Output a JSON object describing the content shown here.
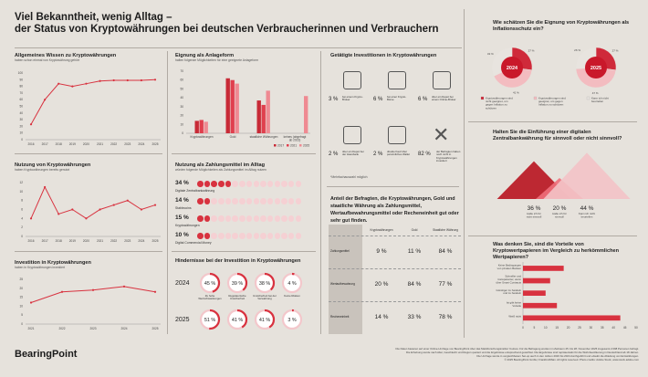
{
  "title_line1": "Viel Bekanntheit, wenig Alltag –",
  "title_line2": "der Status von Kryptowährungen bei deutschen Verbraucherinnen und Verbrauchern",
  "brand": "BearingPoint",
  "footer_line1": "Die Daten basieren auf einer Online-Umfrage von BearingPoint über das Marktforschungsinstitut YouGov. Für die Befragung wurden im Zeitraum 25. bis 28. November 2025 insgesamt 2.098 Personen befragt.",
  "footer_line2": "Die Erhebung wurde nach Alter, Geschlecht und Region quotiert und die Ergebnisse entsprechend gewichtet. Die Ergebnisse sind repräsentativ für die Wohnbevölkerung in Deutschland ab 18 Jahren.",
  "footer_line3": "Die Umfrage wurde in vergleichbarem Set-up auch in den Jahren 2016 bis 2024 durchgeführt und erlaubt die Ableitung von Entwicklungen.",
  "footer_line4": "© 2025 BearingPoint GmbH, Frankfurt/Main. All rights reserved. Photo credits: Adobe Stock, www.stock.adobe.com",
  "charts": {
    "wissen": {
      "title": "Allgemeines Wissen zu Kryptowährungen",
      "subtitle": "haben schon einmal von Kryptowährung gehört"
    },
    "nutzung": {
      "title": "Nutzung von Kryptowährungen",
      "subtitle": "haben Kryptowährungen bereits genutzt"
    },
    "investition": {
      "title": "Investition in Kryptowährungen",
      "subtitle": "haben in Kryptowährungen investiert"
    },
    "eignung": {
      "title": "Eignung als Anlageform",
      "subtitle": "halten folgende Möglichkeiten für eine geeignete Anlageform"
    },
    "zahlung": {
      "title": "Nutzung als Zahlungsmittel im Alltag",
      "subtitle": "würden folgende Möglichkeiten als Zahlungsmittel im Alltag nutzen"
    },
    "hindernisse": {
      "title": "Hindernisse bei der Investition in Kryptowährungen"
    },
    "investitionen": {
      "title": "Getätigte Investitionen in Kryptowährungen",
      "note": "*Mehrfachauswahl möglich"
    },
    "anteil": {
      "title": "Anteil der Befragten, die Kryptowährungen, Gold und staatliche Währung als Zahlungsmittel, Wertaufbewahrungsmittel oder Recheneinheit gut oder sehr gut finden."
    },
    "inflation": {
      "title": "Wie schätzen Sie die Eignung von Kryptowährungen als Inflationsschutz ein?"
    },
    "zentralbank": {
      "title": "Halten Sie die Einführung einer digitalen Zentralbankwährung für sinnvoll oder nicht sinnvoll?"
    },
    "wertpapiere": {
      "title": "Was denken Sie, sind die Vorteile von Kryptowertpapieren im Vergleich zu herkömmlichen Wertpapieren?"
    }
  },
  "chart_data": [
    {
      "id": "wissen",
      "type": "line",
      "x": [
        "2016",
        "2017",
        "2018",
        "2019",
        "2020",
        "2021",
        "2022",
        "2023",
        "2024",
        "2025"
      ],
      "values": [
        23,
        60,
        84,
        80,
        84,
        88,
        89,
        89,
        89,
        90
      ],
      "ylim": [
        0,
        100
      ],
      "yticks": [
        "0",
        "10",
        "20",
        "30",
        "40",
        "50",
        "60",
        "70",
        "80",
        "90",
        "100"
      ],
      "grid": false
    },
    {
      "id": "nutzung",
      "type": "line",
      "x": [
        "2016",
        "2017",
        "2018",
        "2019",
        "2020",
        "2021",
        "2022",
        "2023",
        "2024",
        "2025"
      ],
      "values": [
        4,
        11,
        5,
        6,
        4,
        6,
        7,
        8,
        6,
        7
      ],
      "ylim": [
        0,
        12
      ],
      "yticks": [
        "0",
        "2",
        "4",
        "6",
        "8",
        "10",
        "12"
      ],
      "grid": false
    },
    {
      "id": "investition",
      "type": "line",
      "x": [
        "2021",
        "2022",
        "2023",
        "2024",
        "2025"
      ],
      "values": [
        12,
        18,
        19,
        21,
        18
      ],
      "ylim": [
        0,
        25
      ],
      "yticks": [
        "0",
        "5",
        "10",
        "15",
        "20",
        "25"
      ],
      "grid": false
    },
    {
      "id": "eignung",
      "type": "bar",
      "categories": [
        "Kryptowährungen",
        "Gold",
        "staatliche Währungen",
        "keines (abgefragt ab 2023)"
      ],
      "series": [
        {
          "name": "2017",
          "color": "#c82a36",
          "values": [
            14,
            62,
            37,
            0
          ]
        },
        {
          "name": "2021",
          "color": "#e0404e",
          "values": [
            15,
            60,
            32,
            0
          ]
        },
        {
          "name": "2025",
          "color": "#ef8a92",
          "values": [
            13,
            56,
            48,
            42
          ]
        }
      ],
      "ylim": [
        0,
        70
      ],
      "yticks": [
        "0",
        "10",
        "20",
        "30",
        "40",
        "50",
        "60",
        "70"
      ],
      "legend": "bottom-right"
    },
    {
      "id": "zahlung",
      "type": "table",
      "rows": [
        {
          "pct": "34 %",
          "label": "Digitale Zentralbankwährung",
          "value": 34
        },
        {
          "pct": "14 %",
          "label": "Stablecoins",
          "value": 14
        },
        {
          "pct": "15 %",
          "label": "Kryptowährungen",
          "value": 15
        },
        {
          "pct": "10 %",
          "label": "Digital Commercial Money",
          "value": 10
        }
      ]
    },
    {
      "id": "hindernisse",
      "type": "pie",
      "labels": [
        "Zu hohe Wertschwankungen",
        "Regulatorische Unsicherheit",
        "Unsicherheit bei der Verwahrung",
        "Keine Risiken"
      ],
      "rows": [
        {
          "year": "2024",
          "values": [
            "45 %",
            "39 %",
            "38 %",
            "4 %"
          ]
        },
        {
          "year": "2025",
          "values": [
            "51 %",
            "41 %",
            "41 %",
            "3 %"
          ]
        }
      ]
    },
    {
      "id": "investitionen",
      "type": "table",
      "items": [
        {
          "pct": "3 %",
          "label": "bei einem Krypto-Broker"
        },
        {
          "pct": "6 %",
          "label": "bei einer Krypto-Börse"
        },
        {
          "pct": "6 %",
          "label": "über ein Depot bei einem Online-Broker"
        },
        {
          "pct": "2 %",
          "label": "über ein Depot bei der Hausbank"
        },
        {
          "pct": "2 %",
          "label": "direkte Kauf über persönliches Wallet"
        },
        {
          "pct": "82 %",
          "label": "der Befragten haben noch nicht in Kryptowährungen investiert"
        }
      ]
    },
    {
      "id": "anteil",
      "type": "table",
      "columns": [
        "",
        "Kryptowährungen",
        "Gold",
        "Staatliche Währung"
      ],
      "rows": [
        {
          "label": "Zahlungsmittel",
          "values": [
            "9 %",
            "11 %",
            "84 %"
          ]
        },
        {
          "label": "Wertaufbewahrung",
          "values": [
            "20 %",
            "84 %",
            "77 %"
          ]
        },
        {
          "label": "Recheneinheit",
          "values": [
            "14 %",
            "33 %",
            "78 %"
          ]
        }
      ]
    },
    {
      "id": "inflation",
      "type": "pie",
      "series": [
        {
          "name": "2024",
          "values": [
            27,
            41,
            32
          ]
        },
        {
          "name": "2025",
          "values": [
            27,
            47,
            26
          ]
        }
      ],
      "labels": [
        "Kryptowährungen sind nicht geeignet, um gegen Inflation zu schützen",
        "Kryptowährungen sind geeignet, um gegen Inflation zu schützen",
        "Kann ich nicht beurteilen"
      ],
      "colors": [
        "#cf2a3a",
        "#f3bcc0",
        "#e8e4df"
      ]
    },
    {
      "id": "zentralbank",
      "type": "bar",
      "categories": [
        "Halte ich für nicht sinnvoll",
        "Halte ich für sinnvoll",
        "Kann ich nicht beurteilen"
      ],
      "values": [
        36,
        20,
        44
      ],
      "labels": [
        "36 %",
        "20 %",
        "44 %"
      ]
    },
    {
      "id": "wertpapiere",
      "type": "bar",
      "categories": [
        "Keine Bedingungen von privaten Banken",
        "Schneller und transparenter, wenn über Smart Contracts",
        "Günstiger zu handeln und zu handeln",
        "Ist gibt keine Vorteile",
        "Weiß nicht"
      ],
      "values": [
        18,
        12,
        10,
        15,
        43
      ],
      "xlim": [
        0,
        50
      ],
      "xticks": [
        "0",
        "5",
        "10",
        "15",
        "20",
        "25",
        "30",
        "35",
        "40",
        "45",
        "50"
      ]
    }
  ]
}
